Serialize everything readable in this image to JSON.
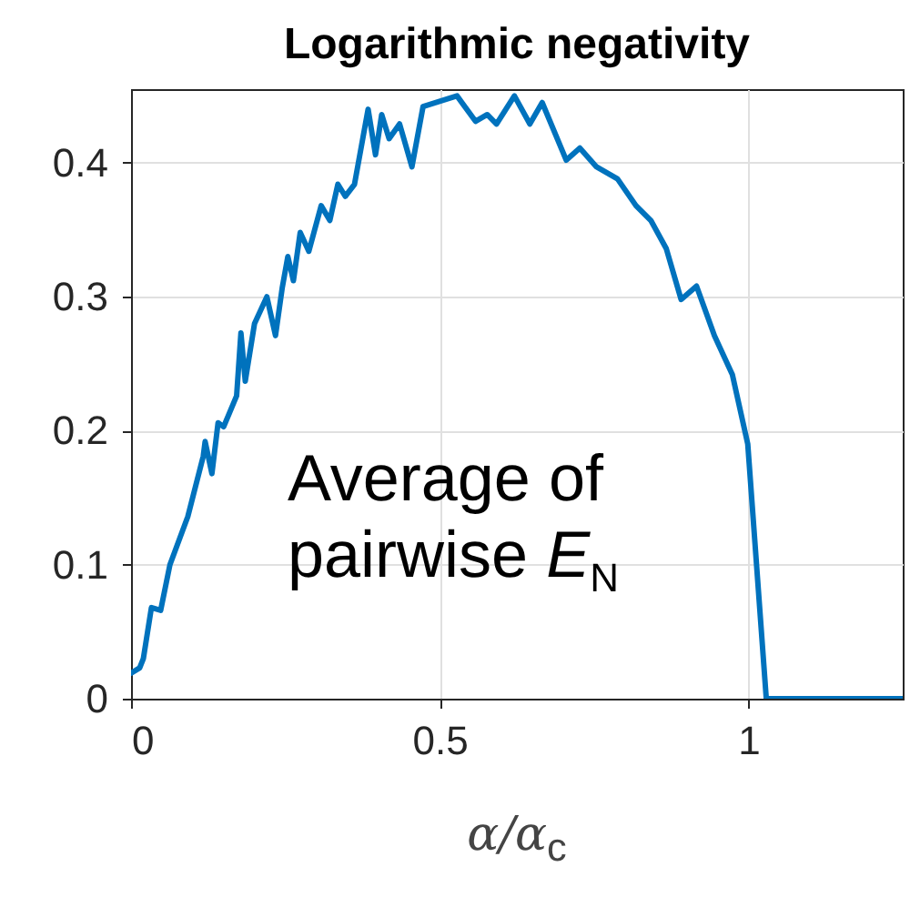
{
  "chart_data": {
    "type": "line",
    "title": "Logarithmic negativity",
    "xlabel": "α/α$_{c}$",
    "annotations": [
      "Average of\npairwise E$_{N}$"
    ],
    "x": [
      0,
      0.014,
      0.02,
      0.033,
      0.048,
      0.063,
      0.092,
      0.117,
      0.12,
      0.131,
      0.141,
      0.15,
      0.171,
      0.178,
      0.185,
      0.2,
      0.22,
      0.234,
      0.245,
      0.254,
      0.263,
      0.274,
      0.288,
      0.308,
      0.322,
      0.335,
      0.347,
      0.362,
      0.384,
      0.396,
      0.406,
      0.418,
      0.435,
      0.455,
      0.473,
      0.494,
      0.528,
      0.558,
      0.577,
      0.592,
      0.621,
      0.646,
      0.666,
      0.705,
      0.727,
      0.754,
      0.788,
      0.818,
      0.842,
      0.867,
      0.891,
      0.916,
      0.945,
      0.974,
      0.999,
      1.029,
      1.25
    ],
    "series": [
      {
        "color": "#0072bd",
        "values": [
          0.019,
          0.023,
          0.03,
          0.068,
          0.066,
          0.1,
          0.136,
          0.181,
          0.192,
          0.168,
          0.206,
          0.203,
          0.226,
          0.273,
          0.237,
          0.28,
          0.3,
          0.271,
          0.307,
          0.33,
          0.312,
          0.348,
          0.334,
          0.368,
          0.357,
          0.384,
          0.375,
          0.384,
          0.44,
          0.406,
          0.436,
          0.418,
          0.429,
          0.397,
          0.442,
          0.445,
          0.45,
          0.431,
          0.436,
          0.429,
          0.45,
          0.429,
          0.445,
          0.402,
          0.411,
          0.397,
          0.388,
          0.368,
          0.357,
          0.336,
          0.298,
          0.308,
          0.271,
          0.242,
          0.19,
          0,
          0
        ]
      }
    ],
    "xlim": [
      0,
      1.25
    ],
    "xticks": [
      0,
      0.5,
      1
    ],
    "ylim": [
      0,
      0.455
    ],
    "yticks": [
      0,
      0.1,
      0.2,
      0.3,
      0.4
    ],
    "grid": true,
    "marker": "none",
    "line_style": "solid"
  }
}
